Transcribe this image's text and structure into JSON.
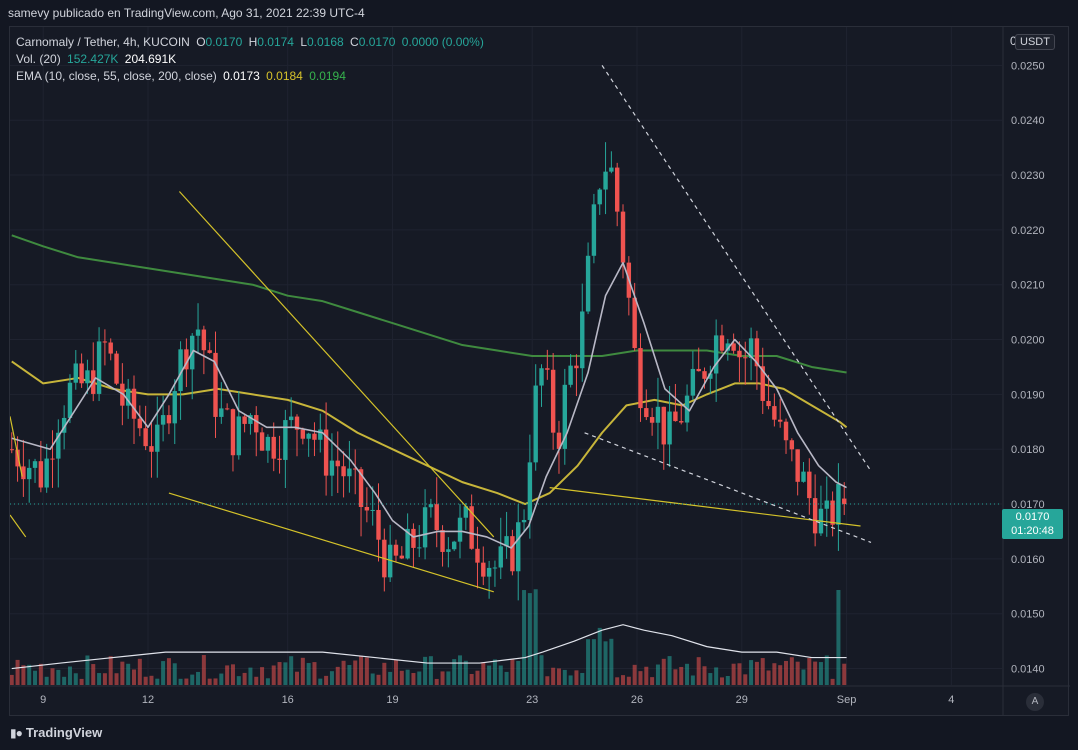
{
  "header": {
    "published_text": "samevy publicado en TradingView.com, Ago 31, 2021 22:39 UTC-4"
  },
  "legend": {
    "symbol": "Carnomaly / Tether, 4h, KUCOIN",
    "ohlc": {
      "o_label": "O",
      "o": "0.0170",
      "h_label": "H",
      "h": "0.0174",
      "l_label": "L",
      "l": "0.0168",
      "c_label": "C",
      "c": "0.0170",
      "change": "0.0000 (0.00%)"
    },
    "volume": {
      "label": "Vol. (20)",
      "vol": "152.427K",
      "ma": "204.691K"
    },
    "ema": {
      "label": "EMA (10, close, 55, close, 200, close)",
      "ema10": "0.0173",
      "ema55": "0.0184",
      "ema200": "0.0194"
    }
  },
  "price_axis": {
    "currency": "USDT",
    "top_label": "0",
    "current_price": "0.0170",
    "countdown": "01:20:48"
  },
  "footer": {
    "brand": "TradingView",
    "auto_label": "A"
  },
  "colors": {
    "background": "#161a25",
    "up": "#26a69a",
    "down": "#ef5350",
    "ema10": "#b8b8c6",
    "ema55": "#c7b53a",
    "ema200": "#3f8a3f",
    "trendline": "#d4c22a",
    "dashed": "#d1d4dc",
    "volume_ma": "#e0e3eb"
  },
  "chart_data": {
    "type": "candlestick",
    "timeframe": "4h",
    "y_range": [
      0.0137,
      0.0257
    ],
    "y_ticks": [
      0.014,
      0.015,
      0.016,
      0.017,
      0.018,
      0.019,
      0.02,
      0.021,
      0.022,
      0.023,
      0.024,
      0.025
    ],
    "y_tick_labels": [
      "0.0140",
      "0.0150",
      "0.0160",
      "0.0170",
      "0.0180",
      "0.0190",
      "0.0200",
      "0.0210",
      "0.0220",
      "0.0230",
      "0.0240",
      "0.0250"
    ],
    "x_ticks": [
      {
        "day": 9,
        "label": "9"
      },
      {
        "day": 12,
        "label": "12"
      },
      {
        "day": 16,
        "label": "16"
      },
      {
        "day": 19,
        "label": "19"
      },
      {
        "day": 23,
        "label": "23"
      },
      {
        "day": 26,
        "label": "26"
      },
      {
        "day": 29,
        "label": "29"
      },
      {
        "day": 32,
        "label": "Sep"
      },
      {
        "day": 35,
        "label": "4"
      }
    ],
    "x_range_days": [
      8.05,
      36.45
    ],
    "current_price": 0.017,
    "anchors": [
      [
        8.1,
        0.018
      ],
      [
        8.5,
        0.0178
      ],
      [
        9.0,
        0.0175
      ],
      [
        9.4,
        0.0186
      ],
      [
        9.8,
        0.0191
      ],
      [
        10.3,
        0.0192
      ],
      [
        10.8,
        0.0199
      ],
      [
        11.3,
        0.0188
      ],
      [
        11.8,
        0.0184
      ],
      [
        12.3,
        0.018
      ],
      [
        12.7,
        0.0192
      ],
      [
        13.1,
        0.0199
      ],
      [
        13.4,
        0.0203
      ],
      [
        13.7,
        0.0196
      ],
      [
        14.0,
        0.0187
      ],
      [
        14.5,
        0.0182
      ],
      [
        15.0,
        0.0187
      ],
      [
        15.4,
        0.0181
      ],
      [
        15.9,
        0.0183
      ],
      [
        16.5,
        0.0186
      ],
      [
        17.0,
        0.0179
      ],
      [
        17.5,
        0.0177
      ],
      [
        18.1,
        0.017
      ],
      [
        18.5,
        0.0166
      ],
      [
        18.9,
        0.0158
      ],
      [
        19.3,
        0.016
      ],
      [
        19.7,
        0.0164
      ],
      [
        20.1,
        0.0167
      ],
      [
        20.6,
        0.0164
      ],
      [
        21.1,
        0.0166
      ],
      [
        21.6,
        0.0161
      ],
      [
        22.0,
        0.0158
      ],
      [
        22.5,
        0.0162
      ],
      [
        22.8,
        0.017
      ],
      [
        23.0,
        0.0186
      ],
      [
        23.3,
        0.0195
      ],
      [
        23.7,
        0.0181
      ],
      [
        24.0,
        0.0192
      ],
      [
        24.4,
        0.0201
      ],
      [
        24.8,
        0.0223
      ],
      [
        25.0,
        0.0233
      ],
      [
        25.3,
        0.023
      ],
      [
        25.7,
        0.0211
      ],
      [
        26.0,
        0.0193
      ],
      [
        26.4,
        0.0189
      ],
      [
        26.9,
        0.0182
      ],
      [
        27.3,
        0.0187
      ],
      [
        27.8,
        0.0193
      ],
      [
        28.3,
        0.0201
      ],
      [
        28.7,
        0.0203
      ],
      [
        29.0,
        0.0196
      ],
      [
        29.3,
        0.0199
      ],
      [
        29.6,
        0.0191
      ],
      [
        29.9,
        0.0186
      ],
      [
        30.3,
        0.0179
      ],
      [
        30.7,
        0.0175
      ],
      [
        31.0,
        0.017
      ],
      [
        31.4,
        0.0166
      ],
      [
        31.7,
        0.017
      ],
      [
        32.0,
        0.017
      ]
    ],
    "ema10_path": [
      [
        8.1,
        0.0182
      ],
      [
        9.2,
        0.018
      ],
      [
        9.8,
        0.0186
      ],
      [
        10.5,
        0.0193
      ],
      [
        11.3,
        0.019
      ],
      [
        12.0,
        0.0184
      ],
      [
        12.6,
        0.019
      ],
      [
        13.3,
        0.0198
      ],
      [
        13.9,
        0.0196
      ],
      [
        14.6,
        0.0187
      ],
      [
        15.4,
        0.0184
      ],
      [
        16.2,
        0.0184
      ],
      [
        17.0,
        0.0183
      ],
      [
        17.8,
        0.0178
      ],
      [
        18.5,
        0.0172
      ],
      [
        19.0,
        0.0167
      ],
      [
        19.6,
        0.0164
      ],
      [
        20.3,
        0.0165
      ],
      [
        21.0,
        0.0165
      ],
      [
        21.7,
        0.0164
      ],
      [
        22.4,
        0.0162
      ],
      [
        22.9,
        0.0166
      ],
      [
        23.4,
        0.0175
      ],
      [
        24.0,
        0.0183
      ],
      [
        24.6,
        0.0194
      ],
      [
        25.1,
        0.0208
      ],
      [
        25.6,
        0.0214
      ],
      [
        26.2,
        0.0203
      ],
      [
        26.8,
        0.0191
      ],
      [
        27.5,
        0.0187
      ],
      [
        28.2,
        0.0195
      ],
      [
        28.8,
        0.02
      ],
      [
        29.4,
        0.0196
      ],
      [
        30.0,
        0.0191
      ],
      [
        30.6,
        0.0183
      ],
      [
        31.2,
        0.0177
      ],
      [
        31.7,
        0.0174
      ],
      [
        32.0,
        0.0173
      ]
    ],
    "ema55_path": [
      [
        8.1,
        0.0196
      ],
      [
        9.0,
        0.0192
      ],
      [
        10.0,
        0.0193
      ],
      [
        11.0,
        0.0191
      ],
      [
        12.0,
        0.019
      ],
      [
        13.0,
        0.019
      ],
      [
        14.0,
        0.0191
      ],
      [
        15.0,
        0.019
      ],
      [
        16.0,
        0.0189
      ],
      [
        17.0,
        0.0187
      ],
      [
        18.0,
        0.0183
      ],
      [
        19.0,
        0.018
      ],
      [
        20.0,
        0.0177
      ],
      [
        21.0,
        0.0174
      ],
      [
        22.0,
        0.0172
      ],
      [
        22.8,
        0.017
      ],
      [
        23.5,
        0.0172
      ],
      [
        24.3,
        0.0177
      ],
      [
        25.0,
        0.0183
      ],
      [
        25.7,
        0.0188
      ],
      [
        26.5,
        0.0189
      ],
      [
        27.3,
        0.0188
      ],
      [
        28.0,
        0.019
      ],
      [
        28.8,
        0.0192
      ],
      [
        29.5,
        0.0192
      ],
      [
        30.2,
        0.0191
      ],
      [
        31.0,
        0.0188
      ],
      [
        31.8,
        0.0185
      ],
      [
        32.0,
        0.0184
      ]
    ],
    "ema200_path": [
      [
        8.1,
        0.0219
      ],
      [
        9.0,
        0.0217
      ],
      [
        10.0,
        0.0215
      ],
      [
        11.0,
        0.0214
      ],
      [
        12.0,
        0.0213
      ],
      [
        13.0,
        0.0212
      ],
      [
        14.0,
        0.0211
      ],
      [
        15.0,
        0.021
      ],
      [
        16.0,
        0.0208
      ],
      [
        17.0,
        0.0207
      ],
      [
        18.0,
        0.0205
      ],
      [
        19.0,
        0.0203
      ],
      [
        20.0,
        0.0201
      ],
      [
        21.0,
        0.0199
      ],
      [
        22.0,
        0.0198
      ],
      [
        23.0,
        0.0197
      ],
      [
        24.0,
        0.0197
      ],
      [
        25.0,
        0.0197
      ],
      [
        26.0,
        0.0198
      ],
      [
        27.0,
        0.0198
      ],
      [
        28.0,
        0.0198
      ],
      [
        29.0,
        0.0197
      ],
      [
        30.0,
        0.0197
      ],
      [
        31.0,
        0.0195
      ],
      [
        32.0,
        0.0194
      ]
    ],
    "trendlines": [
      {
        "style": "solid",
        "from": [
          12.9,
          0.0227
        ],
        "to": [
          21.9,
          0.0164
        ]
      },
      {
        "style": "solid",
        "from": [
          12.6,
          0.0172
        ],
        "to": [
          21.9,
          0.0154
        ]
      },
      {
        "style": "solid",
        "from": [
          8.05,
          0.0186
        ],
        "to": [
          8.4,
          0.0175
        ]
      },
      {
        "style": "solid",
        "from": [
          8.05,
          0.0168
        ],
        "to": [
          8.5,
          0.0164
        ]
      },
      {
        "style": "solid",
        "from": [
          23.5,
          0.0173
        ],
        "to": [
          32.4,
          0.0166
        ]
      },
      {
        "style": "dashed",
        "from": [
          25.0,
          0.025
        ],
        "to": [
          32.7,
          0.0176
        ]
      },
      {
        "style": "dashed",
        "from": [
          24.5,
          0.0183
        ],
        "to": [
          32.7,
          0.0163
        ]
      }
    ],
    "volume_ma_path": [
      [
        8.1,
        0.014
      ],
      [
        9.5,
        0.0141
      ],
      [
        11.0,
        0.0142
      ],
      [
        12.5,
        0.0143
      ],
      [
        14.0,
        0.0143
      ],
      [
        15.5,
        0.0143
      ],
      [
        17.0,
        0.0143
      ],
      [
        18.5,
        0.0142
      ],
      [
        20.0,
        0.0141
      ],
      [
        21.5,
        0.0141
      ],
      [
        22.8,
        0.0142
      ],
      [
        23.3,
        0.0143
      ],
      [
        24.2,
        0.0145
      ],
      [
        25.0,
        0.0147
      ],
      [
        25.6,
        0.0148
      ],
      [
        26.2,
        0.0147
      ],
      [
        27.0,
        0.0146
      ],
      [
        28.0,
        0.0144
      ],
      [
        29.0,
        0.0143
      ],
      [
        30.0,
        0.0143
      ],
      [
        31.0,
        0.0142
      ],
      [
        32.0,
        0.0142
      ]
    ]
  }
}
